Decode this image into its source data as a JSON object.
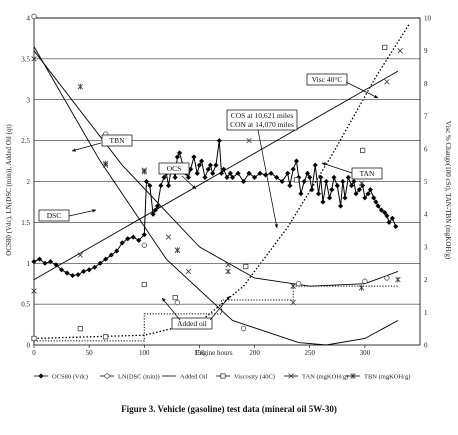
{
  "chart_data": {
    "type": "line",
    "caption": "Figure 3. Vehicle (gasoline) test data (mineral oil 5W-30)",
    "xlabel": "Engine hours",
    "ylabel_left": "OCS80 (Vdc), LN(DSC (min)), Added Oil (qt)",
    "ylabel_right": "Visc % Change(100 cSt), TAN-TBN (mgKOH/g)",
    "xlim": [
      0,
      350
    ],
    "ylim_left": [
      0,
      4
    ],
    "ylim_right": [
      0,
      10
    ],
    "x_ticks": [
      "0",
      "50",
      "100",
      "150",
      "200",
      "250",
      "300"
    ],
    "y_left_ticks": [
      "0",
      "0.5",
      "1",
      "1.5",
      "2",
      "2.5",
      "3",
      "3.5",
      "4"
    ],
    "y_right_ticks": [
      "0",
      "1",
      "2",
      "3",
      "4",
      "5",
      "6",
      "7",
      "8",
      "9",
      "10"
    ],
    "legend": [
      {
        "label": "OCS80 (Vdc)",
        "marker": "diamond-filled"
      },
      {
        "label": "LN(DSC (min))",
        "marker": "circle-open"
      },
      {
        "label": "Added Oil",
        "marker": "line"
      },
      {
        "label": "Viscosity (40C)",
        "marker": "square-open"
      },
      {
        "label": "TAN (mgKOH/g)",
        "marker": "x"
      },
      {
        "label": "TBN (mgKOH/g)",
        "marker": "asterisk"
      }
    ],
    "annotations": [
      {
        "text": "Visc 40°C"
      },
      {
        "text": "TBN"
      },
      {
        "text": "TAN"
      },
      {
        "text": "OCS"
      },
      {
        "text": "DSC"
      },
      {
        "text": "Added oil"
      },
      {
        "text": "COS at 10,621 miles"
      },
      {
        "text": "CON at 14,070 miles"
      }
    ],
    "series": [
      {
        "name": "OCS80 (Vdc)",
        "axis": "left",
        "x": [
          0,
          5,
          10,
          15,
          20,
          25,
          30,
          35,
          40,
          45,
          50,
          55,
          60,
          65,
          70,
          75,
          80,
          85,
          90,
          95,
          100,
          102,
          105,
          108,
          110,
          112,
          115,
          118,
          120,
          122,
          125,
          128,
          130,
          132,
          135,
          138,
          140,
          142,
          145,
          148,
          150,
          152,
          155,
          158,
          160,
          162,
          165,
          168,
          170,
          172,
          175,
          178,
          180,
          185,
          190,
          195,
          200,
          205,
          210,
          215,
          220,
          225,
          230,
          232,
          235,
          238,
          240,
          242,
          245,
          248,
          250,
          252,
          255,
          258,
          260,
          262,
          265,
          268,
          270,
          272,
          275,
          278,
          280,
          282,
          285,
          288,
          290,
          292,
          295,
          298,
          300,
          303,
          305,
          308,
          310,
          312,
          315,
          318,
          320,
          322,
          325,
          328
        ],
        "y": [
          1.02,
          1.05,
          1.0,
          1.02,
          0.98,
          0.92,
          0.88,
          0.85,
          0.86,
          0.9,
          0.92,
          0.95,
          1.0,
          1.05,
          1.1,
          1.15,
          1.25,
          1.3,
          1.32,
          1.28,
          1.35,
          2.0,
          1.95,
          1.6,
          1.65,
          1.7,
          1.95,
          2.05,
          2.1,
          1.95,
          2.2,
          2.05,
          2.3,
          2.35,
          2.2,
          2.1,
          2.05,
          2.15,
          2.3,
          2.1,
          2.2,
          2.25,
          2.05,
          2.15,
          2.2,
          2.1,
          2.2,
          2.5,
          2.1,
          2.15,
          2.05,
          2.1,
          2.05,
          2.1,
          2.0,
          2.1,
          2.05,
          2.1,
          2.08,
          2.1,
          2.05,
          2.0,
          2.1,
          1.95,
          2.15,
          2.25,
          2.05,
          1.85,
          2.0,
          2.1,
          2.05,
          1.9,
          2.2,
          1.85,
          2.05,
          1.75,
          2.0,
          1.8,
          1.9,
          2.05,
          1.95,
          1.7,
          2.0,
          1.8,
          2.05,
          1.95,
          2.0,
          1.85,
          1.9,
          1.95,
          1.8,
          1.85,
          1.9,
          1.8,
          1.75,
          1.7,
          1.65,
          1.62,
          1.58,
          1.5,
          1.55,
          1.45
        ]
      },
      {
        "name": "LN(DSC (min))",
        "axis": "left",
        "x": [
          0,
          65,
          100,
          130,
          190,
          240,
          300,
          320
        ],
        "y": [
          4.02,
          2.58,
          1.22,
          0.52,
          0.2,
          0.75,
          0.78,
          0.82
        ]
      },
      {
        "name": "Added Oil",
        "axis": "left",
        "x": [
          0,
          100,
          100,
          170,
          170,
          235,
          235,
          330
        ],
        "y": [
          0.05,
          0.05,
          0.38,
          0.38,
          0.55,
          0.55,
          0.72,
          0.72
        ]
      },
      {
        "name": "Viscosity (40C)",
        "axis": "right",
        "x": [
          0,
          42,
          65,
          100,
          128,
          143,
          192,
          238,
          298,
          318
        ],
        "y": [
          0.2,
          0.5,
          0.25,
          1.85,
          1.45,
          0.6,
          2.4,
          5.05,
          5.95,
          9.1
        ]
      },
      {
        "name": "TAN (mgKOH/g)",
        "axis": "right",
        "x": [
          0,
          42,
          65,
          100,
          122,
          130,
          140,
          176,
          195,
          235,
          297,
          320,
          332
        ],
        "y": [
          1.65,
          2.75,
          5.5,
          5.35,
          3.3,
          2.9,
          2.25,
          2.45,
          6.25,
          1.3,
          4.95,
          8.05,
          9.0
        ]
      },
      {
        "name": "TBN (mgKOH/g)",
        "axis": "right",
        "x": [
          0,
          42,
          65,
          100,
          130,
          176,
          235,
          297,
          330
        ],
        "y": [
          8.75,
          7.9,
          5.55,
          5.3,
          2.9,
          2.25,
          1.8,
          1.75,
          2.0
        ]
      }
    ],
    "trend_lines": [
      {
        "for": "TBN (mgKOH/g)",
        "axis": "left",
        "x": [
          0,
          80,
          150,
          200,
          250,
          300,
          330
        ],
        "y": [
          3.6,
          2.2,
          1.2,
          0.82,
          0.72,
          0.75,
          0.9
        ]
      },
      {
        "for": "TAN (mgKOH/g)",
        "axis": "left",
        "x": [
          0,
          330
        ],
        "y": [
          0.8,
          3.35
        ]
      },
      {
        "for": "LN(DSC (min))",
        "axis": "left",
        "x": [
          0,
          60,
          120,
          180,
          240,
          265,
          300,
          330
        ],
        "y": [
          3.65,
          2.25,
          1.05,
          0.3,
          0.03,
          0.0,
          0.08,
          0.3
        ]
      },
      {
        "for": "Viscosity (40C)",
        "axis": "right",
        "x": [
          0,
          100,
          150,
          190,
          230,
          270,
          310,
          340
        ],
        "y": [
          0.2,
          0.3,
          0.7,
          1.8,
          3.6,
          5.8,
          8.2,
          9.8
        ]
      }
    ]
  }
}
